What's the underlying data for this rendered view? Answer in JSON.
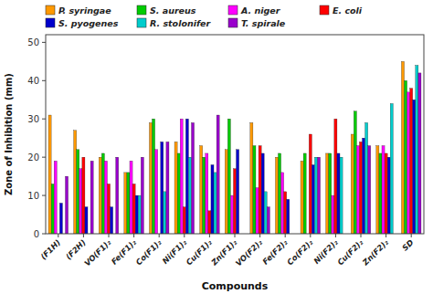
{
  "chart_data": {
    "type": "bar",
    "xlabel": "Compounds",
    "ylabel": "Zone of Inhibition (mm)",
    "categories": [
      "(F1H)",
      "(F2H)",
      "VO(F1)₂",
      "Fe(F1)₂",
      "Co(F1)₂",
      "Ni(F1)₂",
      "Cu(F1)₂",
      "Zn(F1)₂",
      "VO(F2)₂",
      "Fe(F2)₂",
      "Co(F2)₂",
      "Ni(F2)₂",
      "Cu(F2)₂",
      "Zn(F2)₂",
      "SD"
    ],
    "series": [
      {
        "name": "P. syringae",
        "color": "#ff9900",
        "values": [
          31,
          27,
          20,
          16,
          29,
          24,
          23,
          22,
          29,
          20,
          19,
          21,
          26,
          23,
          45
        ]
      },
      {
        "name": "S. aureus",
        "color": "#00cc00",
        "values": [
          13,
          22,
          21,
          16,
          30,
          21,
          20,
          30,
          23,
          21,
          21,
          21,
          32,
          21,
          40
        ]
      },
      {
        "name": "A. niger",
        "color": "#ff00ff",
        "values": [
          19,
          17,
          19,
          19,
          22,
          30,
          21,
          10,
          12,
          16,
          0,
          10,
          23,
          23,
          37
        ]
      },
      {
        "name": "E. coli",
        "color": "#ff0000",
        "values": [
          0,
          20,
          13,
          13,
          0,
          7,
          6,
          17,
          23,
          11,
          26,
          30,
          24,
          21,
          38
        ]
      },
      {
        "name": "S. pyogenes",
        "color": "#0000cc",
        "values": [
          8,
          7,
          7,
          10,
          24,
          30,
          18,
          22,
          21,
          9,
          18,
          21,
          25,
          20,
          35
        ]
      },
      {
        "name": "R. stolonifer",
        "color": "#00cccc",
        "values": [
          0,
          0,
          0,
          10,
          11,
          20,
          16,
          0,
          11,
          0,
          20,
          20,
          29,
          34,
          44
        ]
      },
      {
        "name": "T. spirale",
        "color": "#9900cc",
        "values": [
          15,
          19,
          20,
          20,
          24,
          29,
          31,
          0,
          7,
          0,
          20,
          0,
          23,
          0,
          42
        ]
      }
    ],
    "ylim": [
      0,
      52
    ],
    "yticks": [
      0,
      10,
      20,
      30,
      40,
      50
    ],
    "grid": false,
    "legend": "upper left"
  }
}
